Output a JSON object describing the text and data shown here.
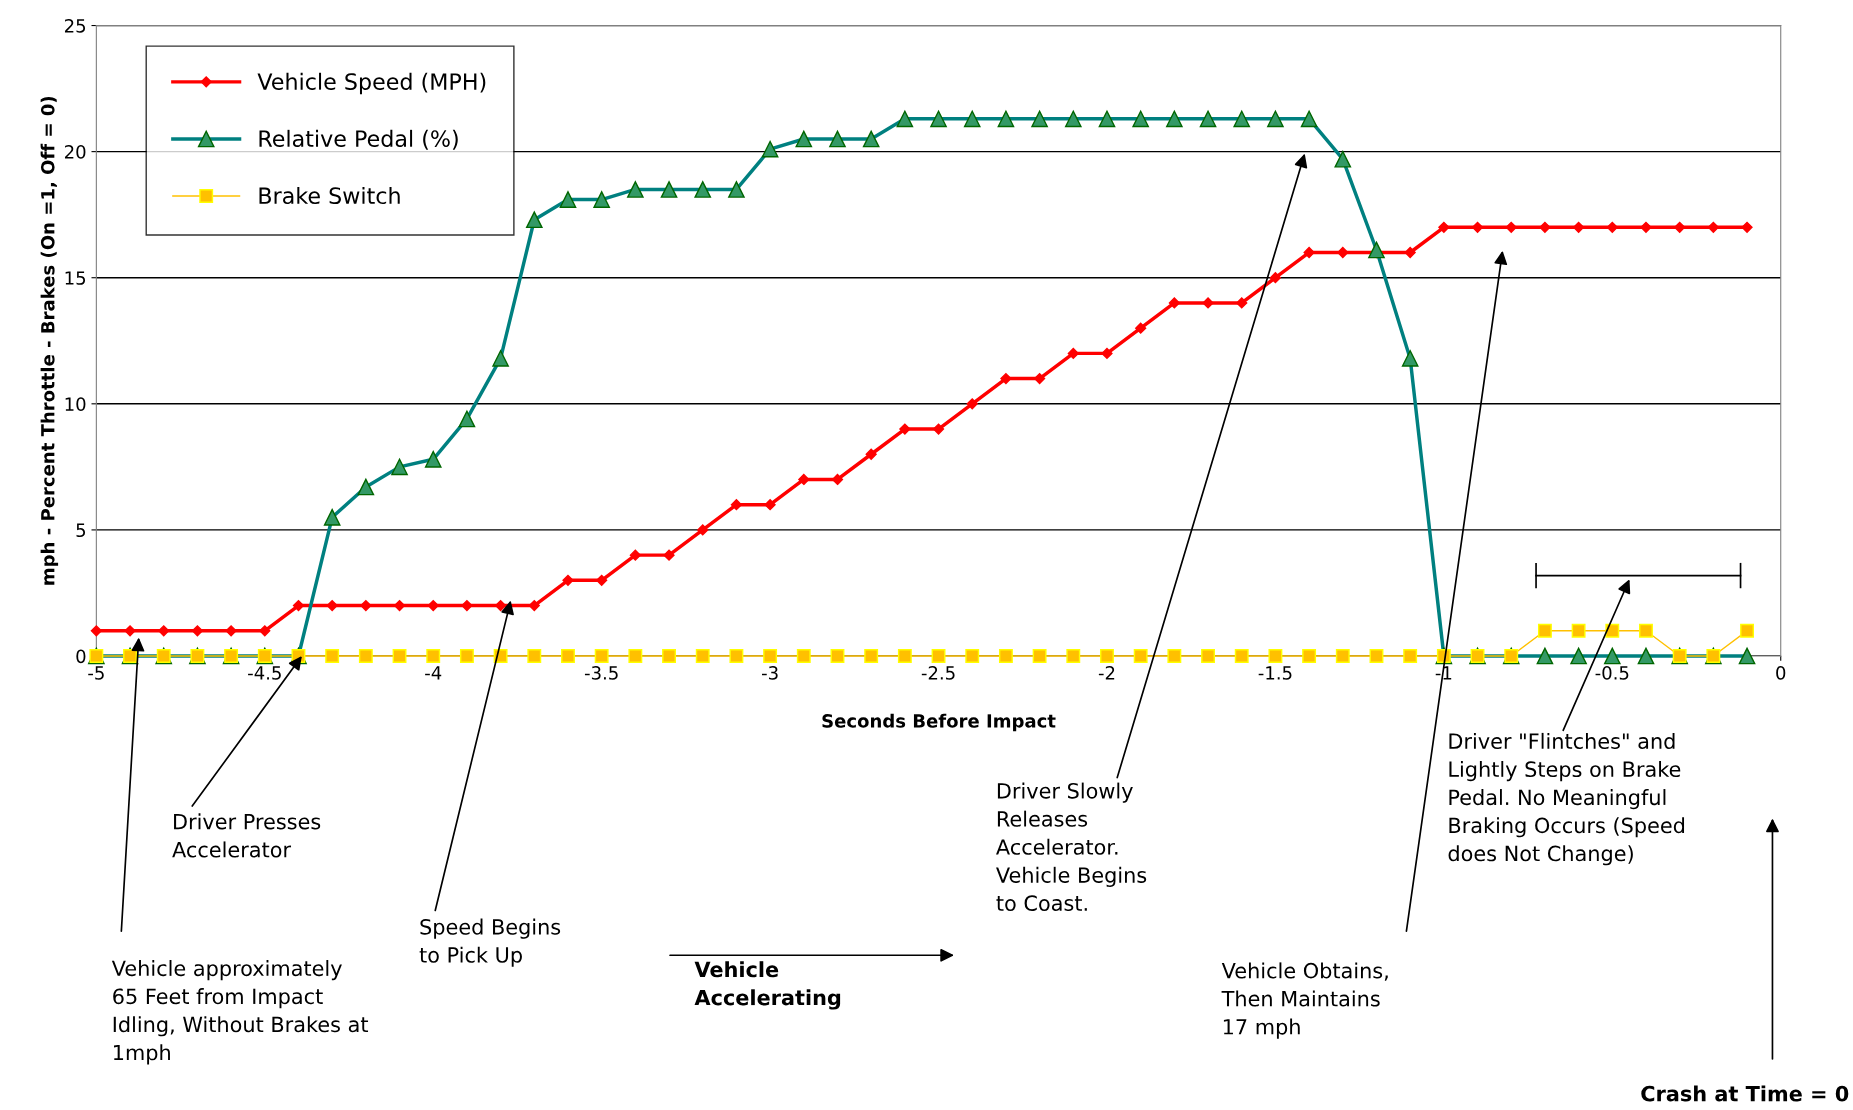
{
  "chart_data": {
    "type": "line",
    "xlabel": "Seconds Before Impact",
    "ylabel": "mph - Percent Throttle - Brakes (On =1, Off = 0)",
    "x": [
      -5,
      -4.9,
      -4.8,
      -4.7,
      -4.6,
      -4.5,
      -4.4,
      -4.3,
      -4.2,
      -4.1,
      -4,
      -3.9,
      -3.8,
      -3.7,
      -3.6,
      -3.5,
      -3.4,
      -3.3,
      -3.2,
      -3.1,
      -3,
      -2.9,
      -2.8,
      -2.7,
      -2.6,
      -2.5,
      -2.4,
      -2.3,
      -2.2,
      -2.1,
      -2,
      -1.9,
      -1.8,
      -1.7,
      -1.6,
      -1.5,
      -1.4,
      -1.3,
      -1.2,
      -1.1,
      -1,
      -0.9,
      -0.8,
      -0.7,
      -0.6,
      -0.5,
      -0.4,
      -0.3,
      -0.2,
      -0.1
    ],
    "series": [
      {
        "name": "Vehicle Speed (MPH)",
        "color": "#ff0000",
        "marker": "diamond",
        "values": [
          1,
          1,
          1,
          1,
          1,
          1,
          2,
          2,
          2,
          2,
          2,
          2,
          2,
          2,
          3,
          3,
          4,
          4,
          5,
          6,
          6,
          7,
          7,
          8,
          9,
          9,
          10,
          11,
          11,
          12,
          12,
          13,
          14,
          14,
          14,
          15,
          16,
          16,
          16,
          16,
          17,
          17,
          17,
          17,
          17,
          17,
          17,
          17,
          17,
          17
        ]
      },
      {
        "name": "Relative Pedal (%)",
        "color": "#008080",
        "marker": "triangle",
        "values": [
          0,
          0,
          0,
          0,
          0,
          0,
          0,
          5.5,
          6.7,
          7.5,
          7.8,
          9.4,
          11.8,
          17.3,
          18.1,
          18.1,
          18.5,
          18.5,
          18.5,
          18.5,
          20.1,
          20.5,
          20.5,
          20.5,
          21.3,
          21.3,
          21.3,
          21.3,
          21.3,
          21.3,
          21.3,
          21.3,
          21.3,
          21.3,
          21.3,
          21.3,
          21.3,
          19.7,
          16.1,
          11.8,
          0,
          0,
          0,
          0,
          0,
          0,
          0,
          0,
          0,
          0
        ]
      },
      {
        "name": "Brake Switch",
        "color": "#ffc000",
        "marker": "square",
        "values": [
          0,
          0,
          0,
          0,
          0,
          0,
          0,
          0,
          0,
          0,
          0,
          0,
          0,
          0,
          0,
          0,
          0,
          0,
          0,
          0,
          0,
          0,
          0,
          0,
          0,
          0,
          0,
          0,
          0,
          0,
          0,
          0,
          0,
          0,
          0,
          0,
          0,
          0,
          0,
          0,
          0,
          0,
          0,
          1,
          1,
          1,
          1,
          0,
          0,
          1
        ]
      }
    ],
    "xlim": [
      -5,
      0
    ],
    "ylim": [
      0,
      25
    ],
    "xticks": [
      -5,
      -4.5,
      -4,
      -3.5,
      -3,
      -2.5,
      -2,
      -1.5,
      -1,
      -0.5,
      0
    ],
    "yticks": [
      0,
      5,
      10,
      15,
      20,
      25
    ],
    "grid": "y",
    "legend": "top left",
    "annotations": [
      "Vehicle approximately\n65 Feet from Impact\nIdling, Without Brakes at\n1mph",
      {
        "text": "Driver Presses\nAccelerator",
        "x": -4.39,
        "y": 0
      },
      {
        "text": "Speed Begins\nto Pick Up",
        "x": -3.77,
        "y": 2.2
      },
      "Vehicle\nAccelerating",
      "Driver Slowly\nReleases\nAccelerator.\nVehicle Begins\nto Coast.",
      "Vehicle Obtains,\nThen Maintains\n17 mph",
      "Driver \"Flintches\" and\nLightly Steps on Brake\nPedal. No Meaningful\nBraking Occurs (Speed\ndoes Not Change)",
      "Crash at Time = 0"
    ]
  }
}
